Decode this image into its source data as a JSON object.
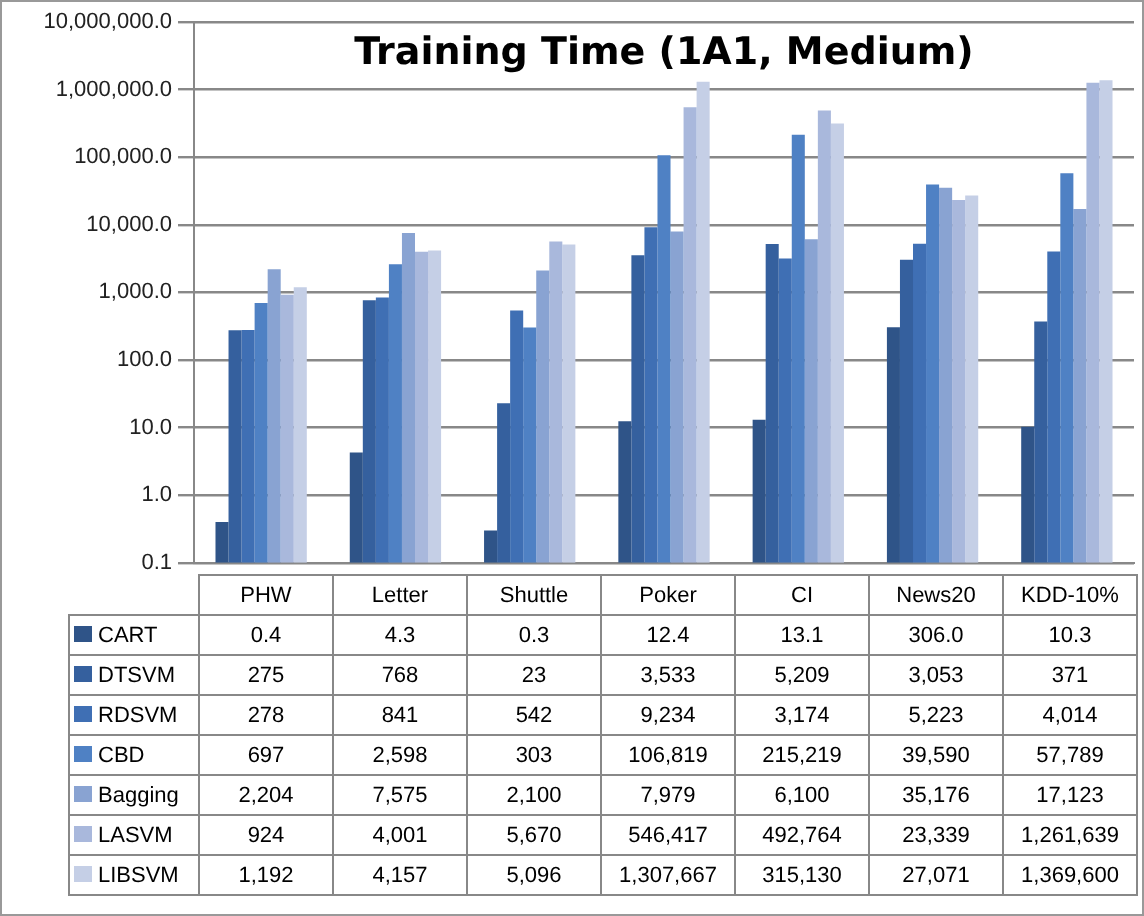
{
  "chart_data": {
    "type": "bar",
    "title": "Training Time (1A1, Medium)",
    "categories": [
      "PHW",
      "Letter",
      "Shuttle",
      "Poker",
      "CI",
      "News20",
      "KDD-10%"
    ],
    "series": [
      {
        "name": "CART",
        "color": "#2f5488",
        "values": [
          0.4,
          4.3,
          0.3,
          12.4,
          13.1,
          306.0,
          10.3
        ],
        "value_labels": [
          "0.4",
          "4.3",
          "0.3",
          "12.4",
          "13.1",
          "306.0",
          "10.3"
        ]
      },
      {
        "name": "DTSVM",
        "color": "#35609e",
        "values": [
          275,
          768,
          23,
          3533,
          5209,
          3053,
          371
        ],
        "value_labels": [
          "275",
          "768",
          "23",
          "3,533",
          "5,209",
          "3,053",
          "371"
        ]
      },
      {
        "name": "RDSVM",
        "color": "#3f6fb4",
        "values": [
          278,
          841,
          542,
          9234,
          3174,
          5223,
          4014
        ],
        "value_labels": [
          "278",
          "841",
          "542",
          "9,234",
          "3,174",
          "5,223",
          "4,014"
        ]
      },
      {
        "name": "CBD",
        "color": "#4f81c4",
        "values": [
          697,
          2598,
          303,
          106819,
          215219,
          39590,
          57789
        ],
        "value_labels": [
          "697",
          "2,598",
          "303",
          "106,819",
          "215,219",
          "39,590",
          "57,789"
        ]
      },
      {
        "name": "Bagging",
        "color": "#89a3d2",
        "values": [
          2204,
          7575,
          2100,
          7979,
          6100,
          35176,
          17123
        ],
        "value_labels": [
          "2,204",
          "7,575",
          "2,100",
          "7,979",
          "6,100",
          "35,176",
          "17,123"
        ]
      },
      {
        "name": "LASVM",
        "color": "#a9b8dc",
        "values": [
          924,
          4001,
          5670,
          546417,
          492764,
          23339,
          1261639
        ],
        "value_labels": [
          "924",
          "4,001",
          "5,670",
          "546,417",
          "492,764",
          "23,339",
          "1,261,639"
        ]
      },
      {
        "name": "LIBSVM",
        "color": "#c5cfe6",
        "values": [
          1192,
          4157,
          5096,
          1307667,
          315130,
          27071,
          1369600
        ],
        "value_labels": [
          "1,192",
          "4,157",
          "5,096",
          "1,307,667",
          "315,130",
          "27,071",
          "1,369,600"
        ]
      }
    ],
    "log": true,
    "ylim": [
      0.1,
      10000000
    ],
    "yticks": [
      {
        "value": 0.1,
        "label": "0.1"
      },
      {
        "value": 1,
        "label": "1.0"
      },
      {
        "value": 10,
        "label": "10.0"
      },
      {
        "value": 100,
        "label": "100.0"
      },
      {
        "value": 1000,
        "label": "1,000.0"
      },
      {
        "value": 10000,
        "label": "10,000.0"
      },
      {
        "value": 100000,
        "label": "100,000.0"
      },
      {
        "value": 1000000,
        "label": "1,000,000.0"
      },
      {
        "value": 10000000,
        "label": "10,000,000.0"
      }
    ],
    "grid": "y",
    "legend": "bottom",
    "tick_labels": "y"
  }
}
